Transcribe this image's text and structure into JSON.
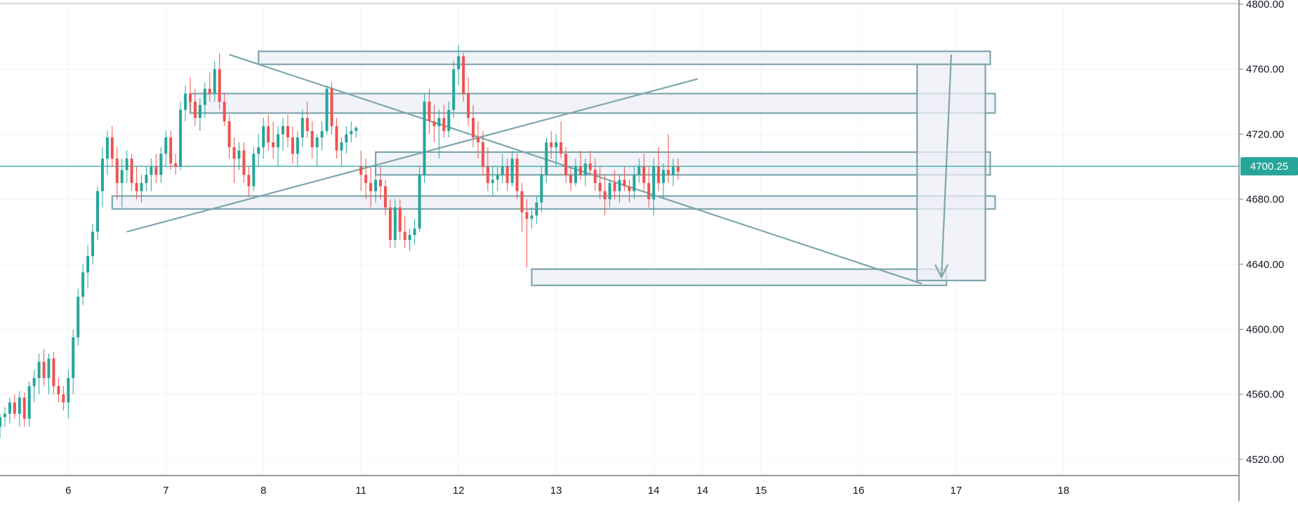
{
  "chart_data": {
    "type": "candlestick",
    "yaxis": {
      "range": [
        4510,
        4800
      ],
      "ticks": [
        4520,
        4560,
        4600,
        4640,
        4680,
        4720,
        4760,
        4800
      ],
      "tick_labels": [
        "4520.00",
        "4560.00",
        "4600.00",
        "4640.00",
        "4680.00",
        "4720.00",
        "4760.00",
        "4800.00"
      ]
    },
    "xaxis": {
      "range": [
        5.3,
        18.0
      ],
      "ticks": [
        {
          "v": 6.0,
          "label": "6"
        },
        {
          "v": 7.0,
          "label": "7"
        },
        {
          "v": 8.0,
          "label": "8"
        },
        {
          "v": 9.0,
          "label": "11"
        },
        {
          "v": 10.0,
          "label": "12"
        },
        {
          "v": 11.0,
          "label": "13"
        },
        {
          "v": 12.0,
          "label": "14"
        },
        {
          "v": 12.5,
          "label": "14"
        },
        {
          "v": 13.1,
          "label": "15"
        },
        {
          "v": 14.1,
          "label": "16"
        },
        {
          "v": 15.1,
          "label": "17"
        },
        {
          "v": 16.2,
          "label": "18"
        }
      ]
    },
    "current_price": {
      "value": 4700.25,
      "label": "4700.25"
    },
    "colors": {
      "up": "#26a69a",
      "down": "#ef5350",
      "drawing": "#7fa6ad",
      "zone_fill": "#eeeef7",
      "price_line": "#26a69a"
    },
    "grid": true,
    "candles": [
      [
        5.3,
        4540,
        4548,
        4533,
        4546
      ],
      [
        5.35,
        4546,
        4552,
        4540,
        4548
      ],
      [
        5.4,
        4548,
        4558,
        4542,
        4555
      ],
      [
        5.45,
        4555,
        4560,
        4545,
        4548
      ],
      [
        5.5,
        4548,
        4562,
        4540,
        4558
      ],
      [
        5.55,
        4558,
        4561,
        4540,
        4545
      ],
      [
        5.6,
        4545,
        4568,
        4540,
        4565
      ],
      [
        5.65,
        4565,
        4575,
        4555,
        4570
      ],
      [
        5.7,
        4570,
        4585,
        4560,
        4580
      ],
      [
        5.75,
        4580,
        4588,
        4565,
        4570
      ],
      [
        5.8,
        4570,
        4585,
        4560,
        4582
      ],
      [
        5.85,
        4582,
        4586,
        4560,
        4565
      ],
      [
        5.9,
        4565,
        4570,
        4555,
        4560
      ],
      [
        5.95,
        4560,
        4565,
        4550,
        4555
      ],
      [
        6.0,
        4555,
        4575,
        4545,
        4570
      ],
      [
        6.05,
        4570,
        4600,
        4560,
        4595
      ],
      [
        6.1,
        4595,
        4625,
        4590,
        4620
      ],
      [
        6.15,
        4620,
        4640,
        4615,
        4635
      ],
      [
        6.2,
        4635,
        4652,
        4625,
        4645
      ],
      [
        6.25,
        4645,
        4665,
        4640,
        4660
      ],
      [
        6.3,
        4660,
        4688,
        4655,
        4685
      ],
      [
        6.35,
        4685,
        4712,
        4675,
        4705
      ],
      [
        6.4,
        4705,
        4722,
        4695,
        4718
      ],
      [
        6.45,
        4718,
        4725,
        4700,
        4705
      ],
      [
        6.5,
        4705,
        4712,
        4680,
        4690
      ],
      [
        6.55,
        4690,
        4705,
        4675,
        4698
      ],
      [
        6.6,
        4698,
        4710,
        4690,
        4705
      ],
      [
        6.65,
        4705,
        4708,
        4685,
        4690
      ],
      [
        6.7,
        4690,
        4700,
        4680,
        4685
      ],
      [
        6.75,
        4685,
        4695,
        4678,
        4690
      ],
      [
        6.8,
        4690,
        4700,
        4685,
        4695
      ],
      [
        6.85,
        4695,
        4705,
        4685,
        4700
      ],
      [
        6.9,
        4700,
        4708,
        4690,
        4695
      ],
      [
        6.95,
        4695,
        4712,
        4690,
        4708
      ],
      [
        7.0,
        4708,
        4722,
        4700,
        4718
      ],
      [
        7.05,
        4718,
        4722,
        4698,
        4702
      ],
      [
        7.1,
        4702,
        4708,
        4695,
        4700
      ],
      [
        7.15,
        4700,
        4740,
        4698,
        4735
      ],
      [
        7.2,
        4735,
        4750,
        4728,
        4745
      ],
      [
        7.25,
        4745,
        4755,
        4735,
        4740
      ],
      [
        7.3,
        4740,
        4748,
        4725,
        4730
      ],
      [
        7.35,
        4730,
        4742,
        4722,
        4738
      ],
      [
        7.4,
        4738,
        4752,
        4730,
        4748
      ],
      [
        7.45,
        4748,
        4758,
        4740,
        4745
      ],
      [
        7.5,
        4745,
        4765,
        4740,
        4760
      ],
      [
        7.55,
        4760,
        4770,
        4735,
        4740
      ],
      [
        7.6,
        4740,
        4745,
        4725,
        4728
      ],
      [
        7.65,
        4728,
        4732,
        4705,
        4712
      ],
      [
        7.7,
        4712,
        4718,
        4690,
        4705
      ],
      [
        7.75,
        4705,
        4715,
        4698,
        4710
      ],
      [
        7.8,
        4710,
        4715,
        4690,
        4695
      ],
      [
        7.85,
        4695,
        4700,
        4682,
        4688
      ],
      [
        7.9,
        4688,
        4712,
        4685,
        4708
      ],
      [
        7.95,
        4708,
        4720,
        4700,
        4712
      ],
      [
        8.0,
        4712,
        4730,
        4705,
        4725
      ],
      [
        8.05,
        4725,
        4732,
        4710,
        4715
      ],
      [
        8.1,
        4715,
        4728,
        4705,
        4712
      ],
      [
        8.15,
        4712,
        4725,
        4700,
        4720
      ],
      [
        8.2,
        4720,
        4730,
        4710,
        4725
      ],
      [
        8.25,
        4725,
        4732,
        4712,
        4718
      ],
      [
        8.3,
        4718,
        4725,
        4702,
        4708
      ],
      [
        8.35,
        4708,
        4722,
        4700,
        4718
      ],
      [
        8.4,
        4718,
        4735,
        4712,
        4730
      ],
      [
        8.45,
        4730,
        4740,
        4718,
        4722
      ],
      [
        8.5,
        4722,
        4728,
        4705,
        4712
      ],
      [
        8.55,
        4712,
        4720,
        4700,
        4718
      ],
      [
        8.6,
        4718,
        4728,
        4710,
        4722
      ],
      [
        8.65,
        4722,
        4750,
        4720,
        4748
      ],
      [
        8.7,
        4748,
        4752,
        4720,
        4725
      ],
      [
        8.75,
        4725,
        4730,
        4705,
        4710
      ],
      [
        8.8,
        4710,
        4718,
        4700,
        4715
      ],
      [
        8.85,
        4715,
        4725,
        4708,
        4720
      ],
      [
        8.9,
        4720,
        4728,
        4715,
        4722
      ],
      [
        8.95,
        4722,
        4725,
        4718,
        4724
      ],
      [
        9.0,
        4700,
        4710,
        4685,
        4695
      ],
      [
        9.05,
        4695,
        4705,
        4680,
        4690
      ],
      [
        9.1,
        4690,
        4700,
        4675,
        4685
      ],
      [
        9.15,
        4685,
        4698,
        4678,
        4692
      ],
      [
        9.2,
        4692,
        4700,
        4680,
        4688
      ],
      [
        9.25,
        4688,
        4692,
        4670,
        4675
      ],
      [
        9.3,
        4675,
        4680,
        4650,
        4655
      ],
      [
        9.35,
        4655,
        4680,
        4650,
        4675
      ],
      [
        9.4,
        4675,
        4680,
        4655,
        4660
      ],
      [
        9.45,
        4660,
        4670,
        4650,
        4655
      ],
      [
        9.5,
        4655,
        4662,
        4648,
        4658
      ],
      [
        9.55,
        4658,
        4668,
        4652,
        4662
      ],
      [
        9.6,
        4662,
        4700,
        4660,
        4695
      ],
      [
        9.65,
        4695,
        4745,
        4690,
        4740
      ],
      [
        9.7,
        4740,
        4748,
        4720,
        4728
      ],
      [
        9.75,
        4728,
        4738,
        4715,
        4725
      ],
      [
        9.8,
        4725,
        4735,
        4705,
        4730
      ],
      [
        9.85,
        4730,
        4738,
        4718,
        4722
      ],
      [
        9.9,
        4722,
        4740,
        4718,
        4735
      ],
      [
        9.95,
        4735,
        4765,
        4730,
        4760
      ],
      [
        10.0,
        4760,
        4775,
        4750,
        4768
      ],
      [
        10.05,
        4768,
        4770,
        4740,
        4745
      ],
      [
        10.1,
        4745,
        4755,
        4725,
        4730
      ],
      [
        10.15,
        4730,
        4738,
        4712,
        4718
      ],
      [
        10.2,
        4718,
        4728,
        4705,
        4715
      ],
      [
        10.25,
        4715,
        4722,
        4695,
        4700
      ],
      [
        10.3,
        4700,
        4712,
        4685,
        4690
      ],
      [
        10.35,
        4690,
        4700,
        4682,
        4692
      ],
      [
        10.4,
        4692,
        4700,
        4685,
        4695
      ],
      [
        10.45,
        4695,
        4708,
        4690,
        4700
      ],
      [
        10.5,
        4700,
        4705,
        4685,
        4690
      ],
      [
        10.55,
        4690,
        4710,
        4688,
        4705
      ],
      [
        10.6,
        4705,
        4708,
        4680,
        4685
      ],
      [
        10.65,
        4685,
        4690,
        4660,
        4672
      ],
      [
        10.7,
        4672,
        4680,
        4638,
        4668
      ],
      [
        10.75,
        4668,
        4675,
        4662,
        4670
      ],
      [
        10.8,
        4670,
        4682,
        4665,
        4678
      ],
      [
        10.85,
        4678,
        4700,
        4672,
        4695
      ],
      [
        10.9,
        4695,
        4718,
        4690,
        4715
      ],
      [
        10.95,
        4715,
        4722,
        4705,
        4712
      ],
      [
        11.0,
        4712,
        4720,
        4700,
        4715
      ],
      [
        11.05,
        4715,
        4728,
        4705,
        4708
      ],
      [
        11.1,
        4708,
        4712,
        4690,
        4695
      ],
      [
        11.15,
        4695,
        4700,
        4685,
        4690
      ],
      [
        11.2,
        4690,
        4705,
        4688,
        4700
      ],
      [
        11.25,
        4700,
        4710,
        4692,
        4695
      ],
      [
        11.3,
        4695,
        4705,
        4688,
        4702
      ],
      [
        11.35,
        4702,
        4710,
        4695,
        4698
      ],
      [
        11.4,
        4698,
        4705,
        4685,
        4690
      ],
      [
        11.45,
        4690,
        4700,
        4680,
        4685
      ],
      [
        11.5,
        4685,
        4695,
        4670,
        4680
      ],
      [
        11.55,
        4680,
        4692,
        4675,
        4690
      ],
      [
        11.6,
        4690,
        4698,
        4680,
        4685
      ],
      [
        11.65,
        4685,
        4695,
        4678,
        4692
      ],
      [
        11.7,
        4692,
        4700,
        4685,
        4688
      ],
      [
        11.75,
        4688,
        4692,
        4678,
        4685
      ],
      [
        11.8,
        4685,
        4700,
        4680,
        4695
      ],
      [
        11.85,
        4695,
        4705,
        4690,
        4700
      ],
      [
        11.9,
        4700,
        4708,
        4685,
        4690
      ],
      [
        11.95,
        4690,
        4700,
        4675,
        4680
      ],
      [
        12.0,
        4680,
        4705,
        4670,
        4700
      ],
      [
        12.05,
        4700,
        4712,
        4685,
        4690
      ],
      [
        12.1,
        4690,
        4702,
        4680,
        4698
      ],
      [
        12.15,
        4698,
        4720,
        4690,
        4695
      ],
      [
        12.2,
        4695,
        4705,
        4688,
        4700
      ],
      [
        12.25,
        4700,
        4705,
        4692,
        4697
      ]
    ],
    "drawings": {
      "zones": [
        {
          "x1": 7.95,
          "x2": 15.45,
          "y1": 4763,
          "y2": 4771
        },
        {
          "x1": 7.25,
          "x2": 15.5,
          "y1": 4733,
          "y2": 4745
        },
        {
          "x1": 9.15,
          "x2": 15.45,
          "y1": 4695,
          "y2": 4709
        },
        {
          "x1": 6.45,
          "x2": 15.5,
          "y1": 4674,
          "y2": 4682
        },
        {
          "x1": 10.75,
          "x2": 15.0,
          "y1": 4627,
          "y2": 4637
        },
        {
          "x1": 14.7,
          "x2": 15.4,
          "y1": 4630,
          "y2": 4763
        }
      ],
      "lines": [
        {
          "x1": 7.65,
          "y1": 4769,
          "x2": 14.75,
          "y2": 4628
        },
        {
          "x1": 6.6,
          "y1": 4660,
          "x2": 12.45,
          "y2": 4754
        }
      ],
      "arrow": {
        "x1": 15.05,
        "y1": 4769,
        "x2": 14.95,
        "y2": 4632
      }
    }
  }
}
